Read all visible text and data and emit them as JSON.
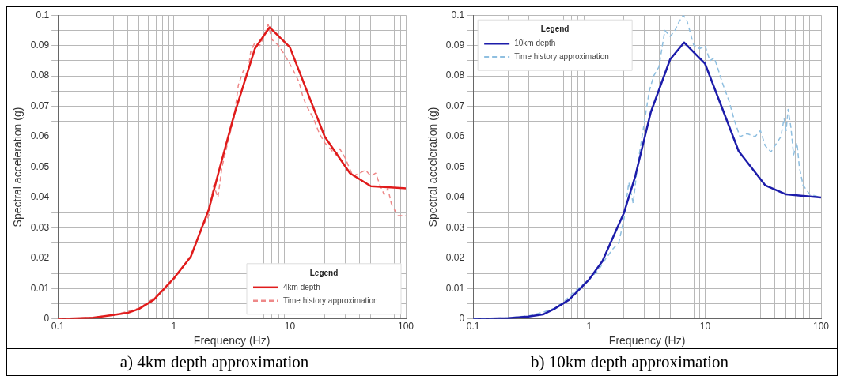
{
  "chart_data": [
    {
      "type": "line",
      "title": "a) 4km depth approximation",
      "xlabel": "Frequency (Hz)",
      "ylabel": "Spectral acceleration (g)",
      "log": "x",
      "grid": true,
      "legend": "bottom right",
      "legend_title": "Legend",
      "xlim": [
        0.1,
        100
      ],
      "ylim": [
        0,
        0.1
      ],
      "xticks": [
        0.1,
        {
          "value": 0.2,
          "label": null
        },
        {
          "value": 0.3,
          "label": null
        },
        {
          "value": 0.4,
          "label": null
        },
        {
          "value": 0.5,
          "label": null
        },
        {
          "value": 0.6,
          "label": null
        },
        {
          "value": 0.7,
          "label": null
        },
        {
          "value": 0.8,
          "label": null
        },
        {
          "value": 0.9,
          "label": null
        },
        1,
        {
          "value": 2,
          "label": null
        },
        {
          "value": 3,
          "label": null
        },
        {
          "value": 4,
          "label": null
        },
        {
          "value": 5,
          "label": null
        },
        {
          "value": 6,
          "label": null
        },
        {
          "value": 7,
          "label": null
        },
        {
          "value": 8,
          "label": null
        },
        {
          "value": 9,
          "label": null
        },
        10,
        {
          "value": 20,
          "label": null
        },
        {
          "value": 30,
          "label": null
        },
        {
          "value": 40,
          "label": null
        },
        {
          "value": 50,
          "label": null
        },
        {
          "value": 60,
          "label": null
        },
        {
          "value": 70,
          "label": null
        },
        {
          "value": 80,
          "label": null
        },
        {
          "value": 90,
          "label": null
        },
        100
      ],
      "yticks": [
        0,
        {
          "value": 0.005,
          "label": null
        },
        0.01,
        {
          "value": 0.015,
          "label": null
        },
        0.02,
        {
          "value": 0.025,
          "label": null
        },
        0.03,
        {
          "value": 0.035,
          "label": null
        },
        0.04,
        {
          "value": 0.045,
          "label": null
        },
        0.05,
        {
          "value": 0.055,
          "label": null
        },
        0.06,
        {
          "value": 0.065,
          "label": null
        },
        0.07,
        {
          "value": 0.075,
          "label": null
        },
        0.08,
        {
          "value": 0.085,
          "label": null
        },
        0.09,
        {
          "value": 0.095,
          "label": null
        },
        0.1
      ],
      "series": [
        {
          "name": "4km depth",
          "color": "#e01b1b",
          "line_style": "solid",
          "x": [
            0.1,
            0.2,
            0.3,
            0.4,
            0.5,
            0.67,
            1,
            1.4,
            2,
            2.5,
            3.3,
            5,
            6.7,
            10,
            20,
            33,
            50,
            100
          ],
          "values": [
            0,
            0.0004,
            0.0013,
            0.002,
            0.0033,
            0.0063,
            0.0134,
            0.0205,
            0.036,
            0.05,
            0.067,
            0.089,
            0.096,
            0.0895,
            0.06,
            0.048,
            0.0437,
            0.043
          ]
        },
        {
          "name": "Time history approximation",
          "color": "#ee8888",
          "line_style": "dashed",
          "x": [
            0.1,
            0.2,
            0.3,
            0.4,
            0.5,
            0.6,
            0.7,
            0.8,
            1,
            1.2,
            1.4,
            1.6,
            1.8,
            2,
            2.2,
            2.4,
            2.6,
            3,
            3.3,
            3.6,
            4,
            4.3,
            4.6,
            5,
            5.5,
            6,
            6.5,
            7,
            8,
            9,
            10,
            11,
            12,
            13,
            14,
            16,
            18,
            20,
            25,
            27,
            30,
            35,
            40,
            45,
            50,
            55,
            60,
            65,
            70,
            75,
            85,
            100
          ],
          "values": [
            0,
            0.0005,
            0.0013,
            0.0025,
            0.0035,
            0.0055,
            0.0075,
            0.009,
            0.013,
            0.017,
            0.021,
            0.026,
            0.031,
            0.034,
            0.044,
            0.04,
            0.05,
            0.06,
            0.066,
            0.077,
            0.082,
            0.08,
            0.088,
            0.091,
            0.09,
            0.093,
            0.097,
            0.092,
            0.09,
            0.087,
            0.084,
            0.081,
            0.078,
            0.073,
            0.07,
            0.066,
            0.061,
            0.058,
            0.054,
            0.056,
            0.053,
            0.047,
            0.048,
            0.049,
            0.047,
            0.048,
            0.044,
            0.041,
            0.043,
            0.038,
            0.034,
            0.034
          ]
        }
      ]
    },
    {
      "type": "line",
      "title": "b) 10km depth approximation",
      "xlabel": "Frequency (Hz)",
      "ylabel": "Spectral acceleration (g)",
      "log": "x",
      "grid": true,
      "legend": "top left",
      "legend_title": "Legend",
      "xlim": [
        0.1,
        100
      ],
      "ylim": [
        0,
        0.1
      ],
      "xticks": [
        0.1,
        {
          "value": 0.2,
          "label": null
        },
        {
          "value": 0.3,
          "label": null
        },
        {
          "value": 0.4,
          "label": null
        },
        {
          "value": 0.5,
          "label": null
        },
        {
          "value": 0.6,
          "label": null
        },
        {
          "value": 0.7,
          "label": null
        },
        {
          "value": 0.8,
          "label": null
        },
        {
          "value": 0.9,
          "label": null
        },
        1,
        {
          "value": 2,
          "label": null
        },
        {
          "value": 3,
          "label": null
        },
        {
          "value": 4,
          "label": null
        },
        {
          "value": 5,
          "label": null
        },
        {
          "value": 6,
          "label": null
        },
        {
          "value": 7,
          "label": null
        },
        {
          "value": 8,
          "label": null
        },
        {
          "value": 9,
          "label": null
        },
        10,
        {
          "value": 20,
          "label": null
        },
        {
          "value": 30,
          "label": null
        },
        {
          "value": 40,
          "label": null
        },
        {
          "value": 50,
          "label": null
        },
        {
          "value": 60,
          "label": null
        },
        {
          "value": 70,
          "label": null
        },
        {
          "value": 80,
          "label": null
        },
        {
          "value": 90,
          "label": null
        },
        100
      ],
      "yticks": [
        0,
        {
          "value": 0.005,
          "label": null
        },
        0.01,
        {
          "value": 0.015,
          "label": null
        },
        0.02,
        {
          "value": 0.025,
          "label": null
        },
        0.03,
        {
          "value": 0.035,
          "label": null
        },
        0.04,
        {
          "value": 0.045,
          "label": null
        },
        0.05,
        {
          "value": 0.055,
          "label": null
        },
        0.06,
        {
          "value": 0.065,
          "label": null
        },
        0.07,
        {
          "value": 0.075,
          "label": null
        },
        0.08,
        {
          "value": 0.085,
          "label": null
        },
        0.09,
        {
          "value": 0.095,
          "label": null
        },
        0.1
      ],
      "series": [
        {
          "name": "10km depth",
          "color": "#1c1caa",
          "line_style": "solid",
          "x": [
            0.1,
            0.2,
            0.3,
            0.4,
            0.5,
            0.67,
            1,
            1.3,
            2,
            2.5,
            3.4,
            5,
            6.6,
            10,
            19.5,
            33,
            50,
            100
          ],
          "values": [
            0,
            0.0003,
            0.0008,
            0.0015,
            0.0033,
            0.0063,
            0.013,
            0.019,
            0.035,
            0.047,
            0.068,
            0.0855,
            0.091,
            0.084,
            0.0552,
            0.044,
            0.041,
            0.04
          ]
        },
        {
          "name": "Time history approximation",
          "color": "#8fbfe0",
          "line_style": "dashed",
          "x": [
            0.1,
            0.2,
            0.3,
            0.4,
            0.5,
            0.6,
            0.7,
            0.8,
            1,
            1.2,
            1.4,
            1.6,
            1.8,
            2,
            2.2,
            2.4,
            2.6,
            3,
            3.3,
            3.6,
            4,
            4.5,
            5,
            5.5,
            6,
            6.5,
            7,
            8,
            9,
            10,
            11,
            12,
            13,
            14,
            16,
            18,
            20,
            23,
            27,
            30,
            33,
            37,
            40,
            45,
            48,
            50,
            52,
            55,
            58,
            62,
            65,
            70,
            80,
            100
          ],
          "values": [
            0,
            0.0004,
            0.001,
            0.0022,
            0.0035,
            0.0055,
            0.008,
            0.01,
            0.013,
            0.016,
            0.02,
            0.023,
            0.025,
            0.033,
            0.045,
            0.038,
            0.05,
            0.065,
            0.075,
            0.08,
            0.083,
            0.095,
            0.093,
            0.095,
            0.098,
            0.1,
            0.098,
            0.09,
            0.089,
            0.09,
            0.085,
            0.086,
            0.082,
            0.078,
            0.072,
            0.065,
            0.06,
            0.061,
            0.06,
            0.062,
            0.057,
            0.055,
            0.057,
            0.06,
            0.066,
            0.062,
            0.069,
            0.063,
            0.054,
            0.058,
            0.05,
            0.044,
            0.041,
            0.04
          ]
        }
      ]
    }
  ]
}
